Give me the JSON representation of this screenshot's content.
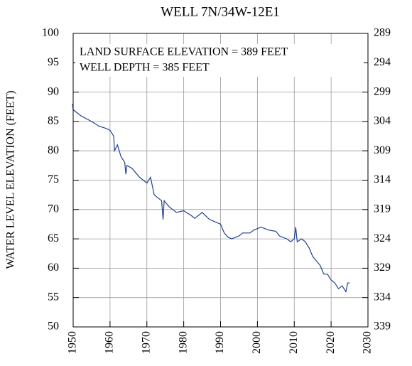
{
  "chart_data": {
    "type": "line",
    "title": "WELL 7N/34W-12E1",
    "y_label": "WATER LEVEL ELEVATION (FEET)",
    "annotations": [
      "LAND SURFACE ELEVATION = 389 FEET",
      "WELL DEPTH = 385 FEET"
    ],
    "xlim": [
      1950,
      2030
    ],
    "xticks": [
      1950,
      1960,
      1970,
      1980,
      1990,
      2000,
      2010,
      2020,
      2030
    ],
    "ylim": [
      50,
      100
    ],
    "yticks": [
      50,
      55,
      60,
      65,
      70,
      75,
      80,
      85,
      90,
      95,
      100
    ],
    "y2lim": [
      339,
      289
    ],
    "y2ticks": [
      339,
      334,
      329,
      324,
      319,
      314,
      309,
      304,
      299,
      294,
      289
    ],
    "grid": true,
    "series": [
      {
        "color": "#1f3f8f",
        "x": [
          1949.8,
          1950,
          1952,
          1955,
          1957,
          1959,
          1960,
          1961,
          1961.2,
          1962,
          1963,
          1964,
          1964.3,
          1964.6,
          1966,
          1968,
          1970,
          1971,
          1972,
          1973,
          1974,
          1974.4,
          1974.7,
          1976,
          1977,
          1978,
          1980,
          1982,
          1983,
          1985,
          1987,
          1990,
          1991,
          1992,
          1993,
          1995,
          1996,
          1998,
          1999,
          2001,
          2003,
          2005,
          2006,
          2008,
          2009,
          2010,
          2010.4,
          2010.8,
          2012,
          2013,
          2014,
          2015,
          2017,
          2018,
          2019,
          2020,
          2021,
          2022,
          2023,
          2024,
          2024.5,
          2025
        ],
        "values": [
          88,
          87,
          86,
          85,
          84.2,
          83.8,
          83.5,
          82.5,
          80,
          81,
          79,
          78,
          76,
          77.5,
          77,
          75.5,
          74.5,
          75.5,
          72.5,
          72,
          71.5,
          68.3,
          71.5,
          70.5,
          70,
          69.5,
          69.8,
          69,
          68.5,
          69.5,
          68.3,
          67.5,
          66,
          65.3,
          65,
          65.5,
          66,
          66,
          66.5,
          67,
          66.5,
          66.3,
          65.5,
          65,
          64.5,
          65,
          67,
          64.5,
          65,
          64.5,
          63.5,
          62,
          60.5,
          59,
          59,
          58,
          57.5,
          56.5,
          57,
          56,
          57.5,
          57.5
        ]
      }
    ]
  }
}
